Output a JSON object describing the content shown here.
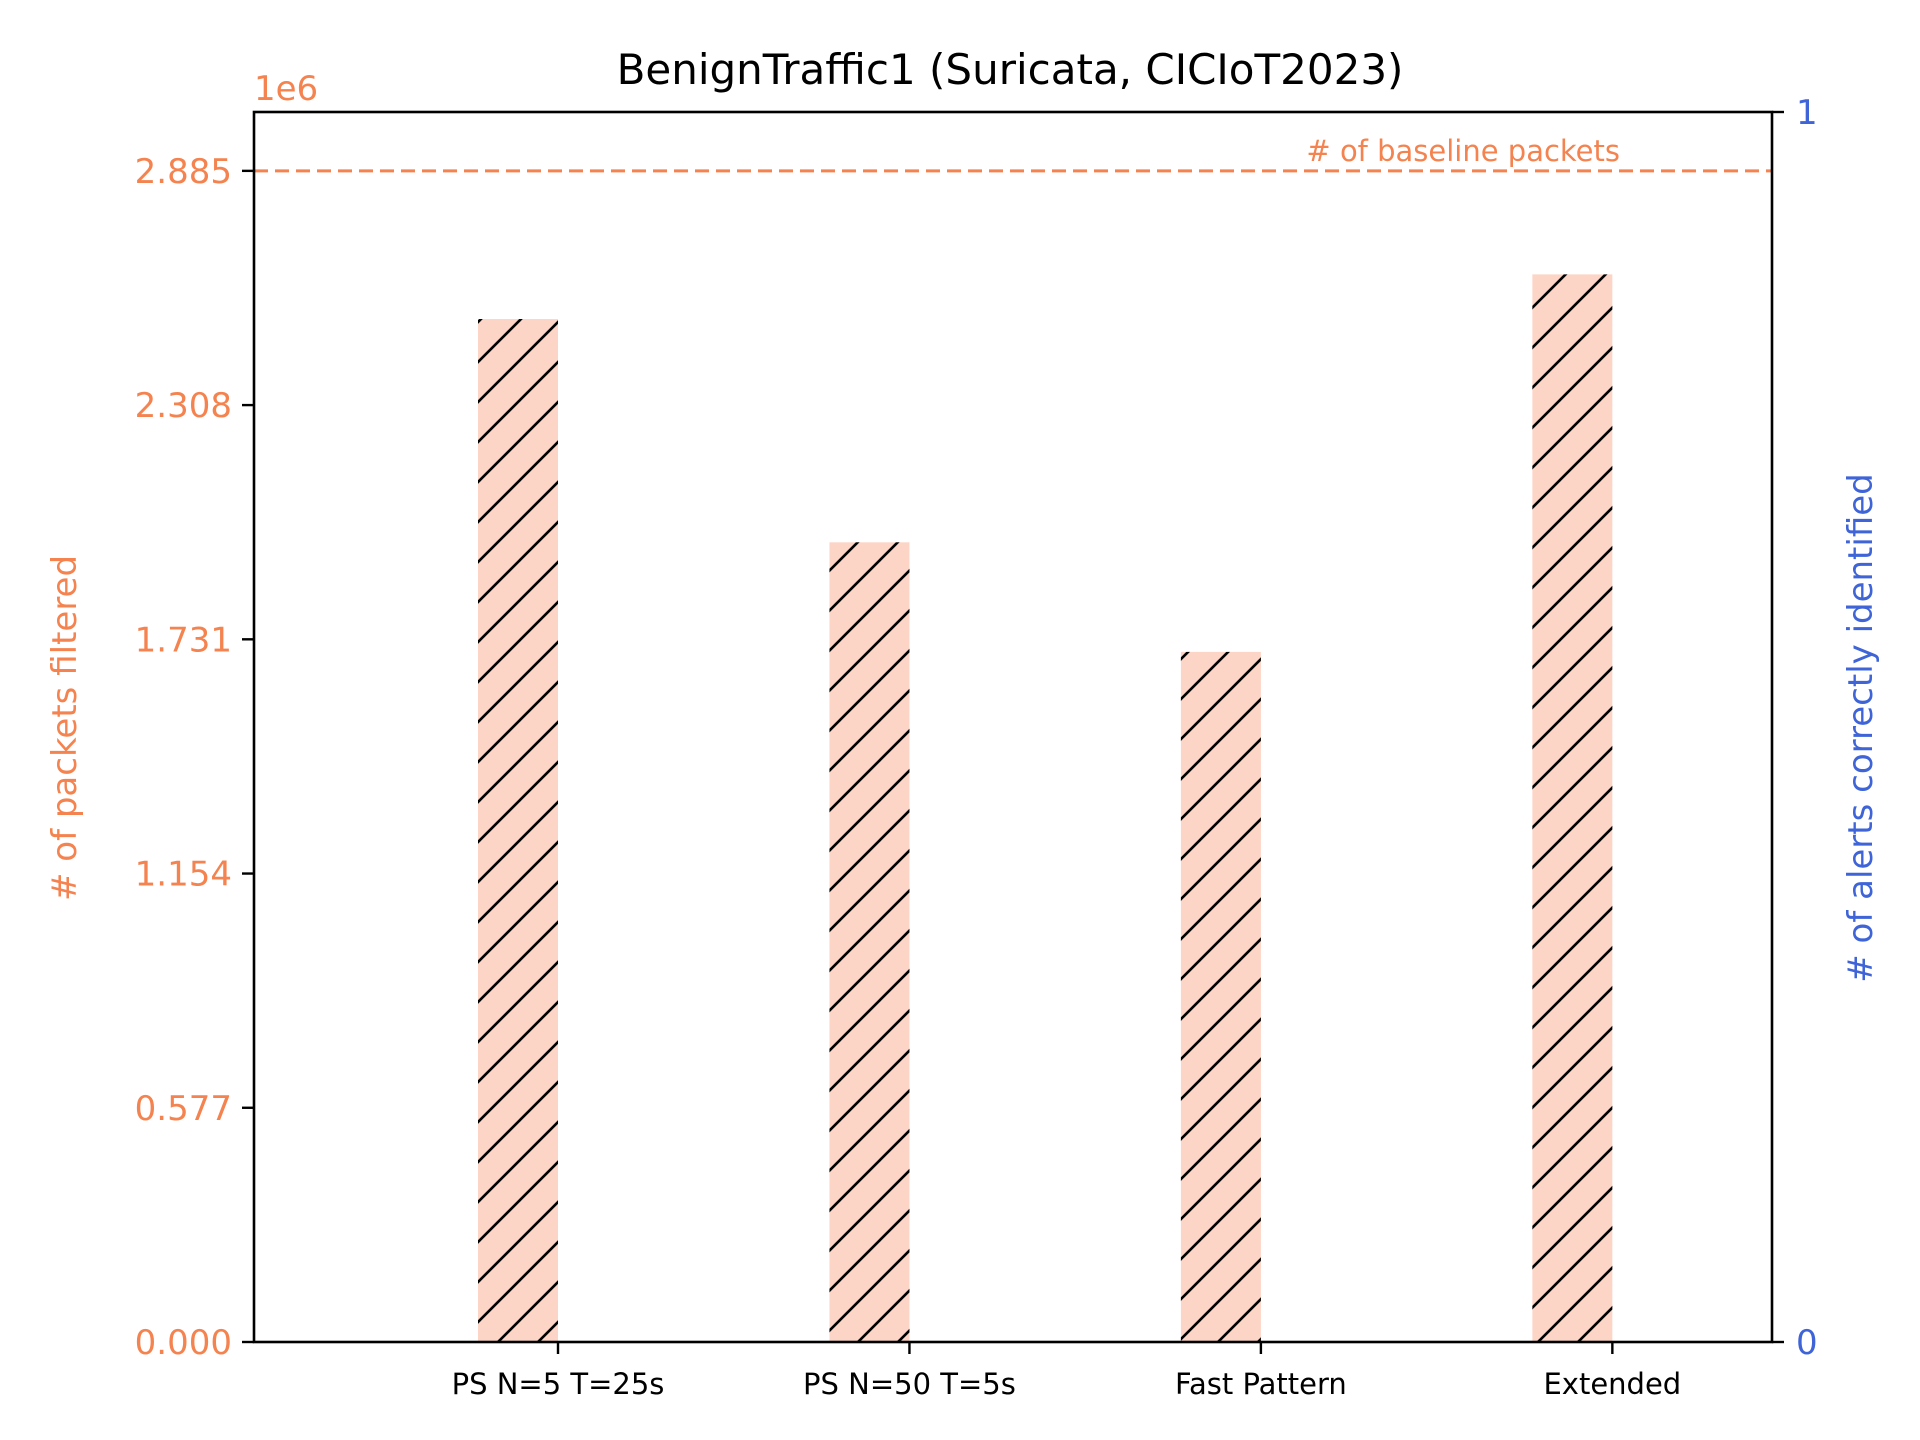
{
  "chart_data": {
    "type": "bar",
    "title": "BenignTraffic1 (Suricata, CICIoT2023)",
    "categories": [
      "PS N=5 T=25s",
      "PS N=50 T=5s",
      "Fast Pattern",
      "Extended"
    ],
    "series": [
      {
        "values": [
          2.52,
          1.97,
          1.7,
          2.63
        ],
        "axis": "left"
      }
    ],
    "left_axis": {
      "label": "# of packets filtered",
      "scale_label": "1e6",
      "ticks": [
        0.0,
        0.577,
        1.154,
        1.731,
        2.308,
        2.885
      ],
      "tick_labels": [
        "0.000",
        "0.577",
        "1.154",
        "1.731",
        "2.308",
        "2.885"
      ],
      "ylim": [
        0,
        3.03
      ],
      "color": "#f4834f"
    },
    "right_axis": {
      "label": "# of alerts correctly identified",
      "ticks": [
        0,
        1
      ],
      "tick_labels": [
        "0",
        "1"
      ],
      "ylim": [
        0,
        1
      ],
      "color": "#3e64d8"
    },
    "baseline": {
      "value": 2.885,
      "label": "# of baseline packets",
      "style": "dashed"
    },
    "bar_fill": "#fdd5c6",
    "bar_hatch": "diagonal",
    "grid": false
  }
}
